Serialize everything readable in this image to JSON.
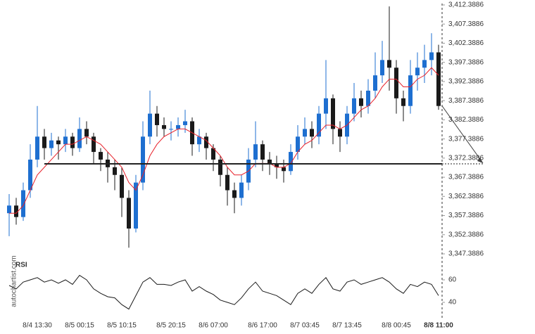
{
  "chart_data": {
    "type": "candlestick",
    "categories": [
      null,
      null,
      null,
      null,
      "8/4 13:30",
      null,
      null,
      null,
      null,
      null,
      "8/5 00:15",
      null,
      null,
      null,
      null,
      null,
      "8/5 10:15",
      null,
      null,
      null,
      null,
      null,
      null,
      "8/5 20:15",
      null,
      null,
      null,
      null,
      null,
      "8/6 07:00",
      null,
      null,
      null,
      null,
      null,
      null,
      "8/6 17:00",
      null,
      null,
      null,
      null,
      null,
      "8/7 03:45",
      null,
      null,
      null,
      null,
      null,
      "8/7 13:45",
      null,
      null,
      null,
      null,
      null,
      null,
      "8/8 00:45",
      null,
      null,
      null,
      null,
      null,
      "8/8 11:00"
    ],
    "open": [
      3358,
      3360,
      3357,
      3364,
      3372,
      3378,
      3375,
      3377,
      3376,
      3378,
      3375,
      3380,
      3378,
      3374,
      3372,
      3370,
      3368,
      3362,
      3354,
      3366,
      3378,
      3384,
      3381,
      3380,
      3380,
      3381,
      3382,
      3376,
      3378,
      3375,
      3372,
      3368,
      3364,
      3362,
      3366,
      3372,
      3376,
      3372,
      3371,
      3370,
      3369,
      3374,
      3378,
      3380,
      3378,
      3384,
      3388,
      3380,
      3378,
      3384,
      3388,
      3386,
      3390,
      3394,
      3398,
      3396,
      3388,
      3386,
      3394,
      3396,
      3398,
      3400
    ],
    "high": [
      3363,
      3362,
      3366,
      3376,
      3386,
      3380,
      3379,
      3378,
      3380,
      3379,
      3383,
      3382,
      3379,
      3375,
      3374,
      3372,
      3370,
      3364,
      3368,
      3382,
      3390,
      3386,
      3383,
      3382,
      3383,
      3385,
      3383,
      3380,
      3379,
      3376,
      3373,
      3370,
      3366,
      3368,
      3375,
      3382,
      3377,
      3374,
      3373,
      3372,
      3376,
      3381,
      3383,
      3382,
      3386,
      3398,
      3389,
      3382,
      3386,
      3392,
      3390,
      3393,
      3400,
      3403,
      3412,
      3398,
      3390,
      3398,
      3400,
      3402,
      3405,
      3402
    ],
    "low": [
      3352,
      3355,
      3356,
      3362,
      3370,
      3372,
      3373,
      3372,
      3374,
      3373,
      3374,
      3376,
      3371,
      3369,
      3366,
      3364,
      3357,
      3349,
      3353,
      3364,
      3376,
      3378,
      3378,
      3377,
      3378,
      3379,
      3373,
      3374,
      3372,
      3369,
      3365,
      3360,
      3358,
      3360,
      3364,
      3370,
      3369,
      3368,
      3367,
      3366,
      3368,
      3372,
      3376,
      3375,
      3376,
      3380,
      3376,
      3374,
      3376,
      3382,
      3383,
      3384,
      3388,
      3392,
      3390,
      3384,
      3382,
      3384,
      3390,
      3392,
      3394,
      3385
    ],
    "close": [
      3360,
      3357,
      3364,
      3372,
      3378,
      3375,
      3377,
      3376,
      3378,
      3375,
      3380,
      3378,
      3374,
      3372,
      3370,
      3368,
      3362,
      3354,
      3366,
      3378,
      3384,
      3381,
      3380,
      3380,
      3381,
      3382,
      3376,
      3378,
      3375,
      3372,
      3368,
      3364,
      3362,
      3366,
      3372,
      3376,
      3372,
      3371,
      3370,
      3369,
      3374,
      3378,
      3380,
      3378,
      3384,
      3388,
      3380,
      3378,
      3384,
      3388,
      3386,
      3390,
      3394,
      3398,
      3396,
      3388,
      3386,
      3394,
      3396,
      3398,
      3400,
      3386
    ],
    "up_color": "#1e6fd0",
    "down_color": "#1a1a1a",
    "moving_average": {
      "color": "#e8202a",
      "values": [
        3358,
        3358,
        3360,
        3364,
        3368,
        3370,
        3372,
        3374,
        3376,
        3376,
        3377,
        3378,
        3377,
        3376,
        3374,
        3372,
        3370,
        3366,
        3364,
        3368,
        3373,
        3376,
        3378,
        3379,
        3380,
        3380,
        3379,
        3378,
        3377,
        3375,
        3373,
        3370,
        3368,
        3368,
        3369,
        3371,
        3371,
        3371,
        3370,
        3370,
        3371,
        3374,
        3376,
        3377,
        3379,
        3381,
        3381,
        3380,
        3381,
        3383,
        3385,
        3386,
        3388,
        3391,
        3393,
        3393,
        3391,
        3391,
        3393,
        3394,
        3396,
        3394
      ]
    },
    "support_level": 3370.9,
    "ylim": [
      3347.3886,
      3412.3886
    ],
    "yticks": [
      {
        "value": 3412.3886,
        "label": "3,412.3886"
      },
      {
        "value": 3407.3886,
        "label": "3,407.3886"
      },
      {
        "value": 3402.3886,
        "label": "3,402.3886"
      },
      {
        "value": 3397.3886,
        "label": "3,397.3886"
      },
      {
        "value": 3392.3886,
        "label": "3,392.3886"
      },
      {
        "value": 3387.3886,
        "label": "3,387.3886"
      },
      {
        "value": 3382.3886,
        "label": "3,382.3886"
      },
      {
        "value": 3377.3886,
        "label": "3,377.3886"
      },
      {
        "value": 3372.3886,
        "label": "3,372.3886"
      },
      {
        "value": 3367.3886,
        "label": "3,367.3886"
      },
      {
        "value": 3362.3886,
        "label": "3,362.3886"
      },
      {
        "value": 3357.3886,
        "label": "3,357.3886"
      },
      {
        "value": 3352.3886,
        "label": "3,352.3886"
      },
      {
        "value": 3347.3886,
        "label": "3,347.3886"
      }
    ],
    "rsi": {
      "label": "RSI",
      "color": "#1a1a1a",
      "ylim": [
        30,
        70
      ],
      "yticks": [
        60,
        40
      ],
      "values": [
        55,
        52,
        58,
        60,
        62,
        58,
        60,
        57,
        60,
        56,
        64,
        60,
        52,
        48,
        45,
        44,
        38,
        34,
        46,
        58,
        62,
        56,
        56,
        55,
        58,
        60,
        50,
        54,
        50,
        47,
        42,
        40,
        38,
        44,
        52,
        58,
        50,
        48,
        46,
        42,
        38,
        48,
        52,
        48,
        56,
        62,
        52,
        50,
        58,
        60,
        56,
        58,
        60,
        62,
        58,
        52,
        48,
        56,
        54,
        58,
        56,
        46
      ]
    },
    "watermark": "autochartist.com"
  }
}
